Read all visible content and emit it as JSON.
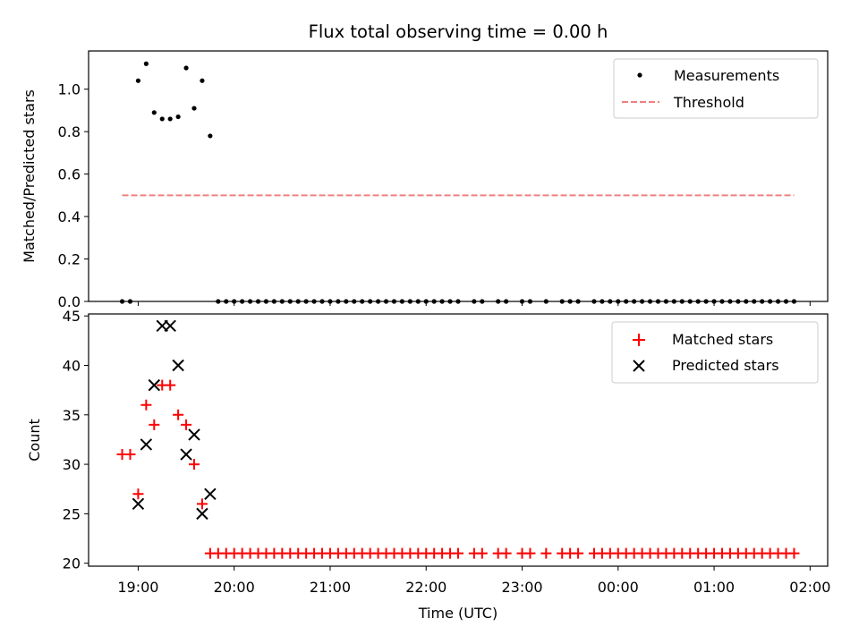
{
  "title": "Flux total observing time = 0.00 h",
  "colors": {
    "measurement": "#000000",
    "threshold": "#f08080",
    "matched": "#ff0000",
    "predicted": "#000000"
  },
  "chart_data": [
    {
      "type": "scatter",
      "ylabel": "Matched/Predicted stars",
      "ylim": [
        0,
        1.18
      ],
      "yticks": [
        "0.0",
        "0.2",
        "0.4",
        "0.6",
        "0.8",
        "1.0"
      ],
      "xticks": [
        "19:00",
        "20:00",
        "21:00",
        "22:00",
        "23:00",
        "00:00",
        "01:00",
        "02:00"
      ],
      "xlim": [
        "18:29",
        "02:11"
      ],
      "legend": {
        "placement": "top-right",
        "entries": [
          "Measurements",
          "Threshold"
        ]
      },
      "series": [
        {
          "name": "Measurements",
          "marker": "dot",
          "points": [
            [
              "18:50",
              0
            ],
            [
              "18:55",
              0
            ],
            [
              "19:00",
              1.04
            ],
            [
              "19:05",
              1.12
            ],
            [
              "19:10",
              0.89
            ],
            [
              "19:15",
              0.86
            ],
            [
              "19:20",
              0.86
            ],
            [
              "19:25",
              0.87
            ],
            [
              "19:30",
              1.1
            ],
            [
              "19:35",
              0.91
            ],
            [
              "19:40",
              1.04
            ],
            [
              "19:45",
              0.78
            ],
            [
              "19:50",
              0
            ],
            [
              "19:55",
              0
            ],
            [
              "20:00",
              0
            ],
            [
              "20:05",
              0
            ],
            [
              "20:10",
              0
            ],
            [
              "20:15",
              0
            ],
            [
              "20:20",
              0
            ],
            [
              "20:25",
              0
            ],
            [
              "20:30",
              0
            ],
            [
              "20:35",
              0
            ],
            [
              "20:40",
              0
            ],
            [
              "20:45",
              0
            ],
            [
              "20:50",
              0
            ],
            [
              "20:55",
              0
            ],
            [
              "21:00",
              0
            ],
            [
              "21:05",
              0
            ],
            [
              "21:10",
              0
            ],
            [
              "21:15",
              0
            ],
            [
              "21:20",
              0
            ],
            [
              "21:25",
              0
            ],
            [
              "21:30",
              0
            ],
            [
              "21:35",
              0
            ],
            [
              "21:40",
              0
            ],
            [
              "21:45",
              0
            ],
            [
              "21:50",
              0
            ],
            [
              "21:55",
              0
            ],
            [
              "22:00",
              0
            ],
            [
              "22:05",
              0
            ],
            [
              "22:10",
              0
            ],
            [
              "22:15",
              0
            ],
            [
              "22:20",
              0
            ],
            [
              "22:30",
              0
            ],
            [
              "22:35",
              0
            ],
            [
              "22:45",
              0
            ],
            [
              "22:50",
              0
            ],
            [
              "23:00",
              0
            ],
            [
              "23:05",
              0
            ],
            [
              "23:15",
              0
            ],
            [
              "23:25",
              0
            ],
            [
              "23:30",
              0
            ],
            [
              "23:35",
              0
            ],
            [
              "23:45",
              0
            ],
            [
              "23:50",
              0
            ],
            [
              "23:55",
              0
            ],
            [
              "00:00",
              0
            ],
            [
              "00:05",
              0
            ],
            [
              "00:10",
              0
            ],
            [
              "00:15",
              0
            ],
            [
              "00:20",
              0
            ],
            [
              "00:25",
              0
            ],
            [
              "00:30",
              0
            ],
            [
              "00:35",
              0
            ],
            [
              "00:40",
              0
            ],
            [
              "00:45",
              0
            ],
            [
              "00:50",
              0
            ],
            [
              "00:55",
              0
            ],
            [
              "01:00",
              0
            ],
            [
              "01:05",
              0
            ],
            [
              "01:10",
              0
            ],
            [
              "01:15",
              0
            ],
            [
              "01:20",
              0
            ],
            [
              "01:25",
              0
            ],
            [
              "01:30",
              0
            ],
            [
              "01:35",
              0
            ],
            [
              "01:40",
              0
            ],
            [
              "01:45",
              0
            ],
            [
              "01:50",
              0
            ]
          ]
        },
        {
          "name": "Threshold",
          "style": "dashed-line",
          "points": [
            [
              "18:50",
              0.5
            ],
            [
              "01:50",
              0.5
            ]
          ]
        }
      ]
    },
    {
      "type": "scatter",
      "ylabel": "Count",
      "xlabel": "Time (UTC)",
      "ylim": [
        19.7,
        45.2
      ],
      "yticks": [
        "20",
        "25",
        "30",
        "35",
        "40",
        "45"
      ],
      "xticks": [
        "19:00",
        "20:00",
        "21:00",
        "22:00",
        "23:00",
        "00:00",
        "01:00",
        "02:00"
      ],
      "xlim": [
        "18:29",
        "02:11"
      ],
      "legend": {
        "placement": "top-right",
        "entries": [
          "Matched stars",
          "Predicted stars"
        ]
      },
      "series": [
        {
          "name": "Matched stars",
          "marker": "plus",
          "points": [
            [
              "18:50",
              31
            ],
            [
              "18:55",
              31
            ],
            [
              "19:00",
              27
            ],
            [
              "19:05",
              36
            ],
            [
              "19:10",
              34
            ],
            [
              "19:15",
              38
            ],
            [
              "19:20",
              38
            ],
            [
              "19:25",
              35
            ],
            [
              "19:30",
              34
            ],
            [
              "19:35",
              30
            ],
            [
              "19:40",
              26
            ],
            [
              "19:45",
              21
            ],
            [
              "19:50",
              21
            ],
            [
              "19:55",
              21
            ],
            [
              "20:00",
              21
            ],
            [
              "20:05",
              21
            ],
            [
              "20:10",
              21
            ],
            [
              "20:15",
              21
            ],
            [
              "20:20",
              21
            ],
            [
              "20:25",
              21
            ],
            [
              "20:30",
              21
            ],
            [
              "20:35",
              21
            ],
            [
              "20:40",
              21
            ],
            [
              "20:45",
              21
            ],
            [
              "20:50",
              21
            ],
            [
              "20:55",
              21
            ],
            [
              "21:00",
              21
            ],
            [
              "21:05",
              21
            ],
            [
              "21:10",
              21
            ],
            [
              "21:15",
              21
            ],
            [
              "21:20",
              21
            ],
            [
              "21:25",
              21
            ],
            [
              "21:30",
              21
            ],
            [
              "21:35",
              21
            ],
            [
              "21:40",
              21
            ],
            [
              "21:45",
              21
            ],
            [
              "21:50",
              21
            ],
            [
              "21:55",
              21
            ],
            [
              "22:00",
              21
            ],
            [
              "22:05",
              21
            ],
            [
              "22:10",
              21
            ],
            [
              "22:15",
              21
            ],
            [
              "22:20",
              21
            ],
            [
              "22:30",
              21
            ],
            [
              "22:35",
              21
            ],
            [
              "22:45",
              21
            ],
            [
              "22:50",
              21
            ],
            [
              "23:00",
              21
            ],
            [
              "23:05",
              21
            ],
            [
              "23:15",
              21
            ],
            [
              "23:25",
              21
            ],
            [
              "23:30",
              21
            ],
            [
              "23:35",
              21
            ],
            [
              "23:45",
              21
            ],
            [
              "23:50",
              21
            ],
            [
              "23:55",
              21
            ],
            [
              "00:00",
              21
            ],
            [
              "00:05",
              21
            ],
            [
              "00:10",
              21
            ],
            [
              "00:15",
              21
            ],
            [
              "00:20",
              21
            ],
            [
              "00:25",
              21
            ],
            [
              "00:30",
              21
            ],
            [
              "00:35",
              21
            ],
            [
              "00:40",
              21
            ],
            [
              "00:45",
              21
            ],
            [
              "00:50",
              21
            ],
            [
              "00:55",
              21
            ],
            [
              "01:00",
              21
            ],
            [
              "01:05",
              21
            ],
            [
              "01:10",
              21
            ],
            [
              "01:15",
              21
            ],
            [
              "01:20",
              21
            ],
            [
              "01:25",
              21
            ],
            [
              "01:30",
              21
            ],
            [
              "01:35",
              21
            ],
            [
              "01:40",
              21
            ],
            [
              "01:45",
              21
            ],
            [
              "01:50",
              21
            ]
          ]
        },
        {
          "name": "Predicted stars",
          "marker": "x",
          "points": [
            [
              "19:00",
              26
            ],
            [
              "19:05",
              32
            ],
            [
              "19:10",
              38
            ],
            [
              "19:15",
              44
            ],
            [
              "19:20",
              44
            ],
            [
              "19:25",
              40
            ],
            [
              "19:30",
              31
            ],
            [
              "19:35",
              33
            ],
            [
              "19:40",
              25
            ],
            [
              "19:45",
              27
            ]
          ]
        }
      ]
    }
  ]
}
